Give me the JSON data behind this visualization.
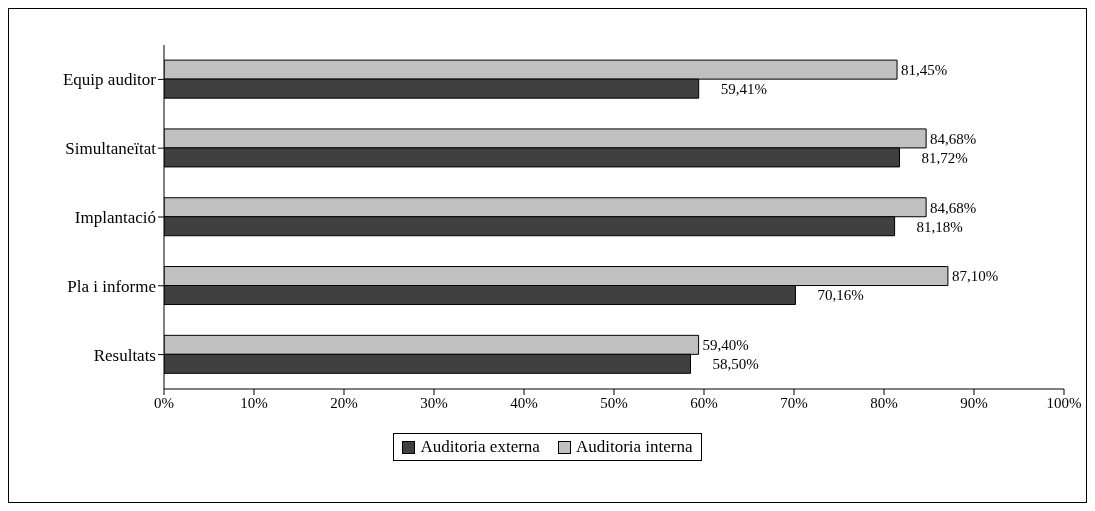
{
  "chart_data": {
    "type": "bar",
    "orientation": "horizontal",
    "categories": [
      "Equip auditor",
      "Simultaneïtat",
      "Implantació",
      "Pla i informe",
      "Resultats"
    ],
    "series": [
      {
        "name": "Auditoria externa",
        "color": "#404040",
        "values": [
          59.41,
          81.72,
          81.18,
          70.16,
          58.5
        ],
        "value_labels": [
          "59,41%",
          "81,72%",
          "81,18%",
          "70,16%",
          "58,50%"
        ]
      },
      {
        "name": "Auditoria interna",
        "color": "#c0c0c0",
        "values": [
          81.45,
          84.68,
          84.68,
          87.1,
          59.4
        ],
        "value_labels": [
          "81,45%",
          "84,68%",
          "84,68%",
          "87,10%",
          "59,40%"
        ]
      }
    ],
    "xlim": [
      0,
      100
    ],
    "xticks": [
      {
        "value": 0,
        "label": "0%"
      },
      {
        "value": 10,
        "label": "10%"
      },
      {
        "value": 20,
        "label": "20%"
      },
      {
        "value": 30,
        "label": "30%"
      },
      {
        "value": 40,
        "label": "40%"
      },
      {
        "value": 50,
        "label": "50%"
      },
      {
        "value": 60,
        "label": "60%"
      },
      {
        "value": 70,
        "label": "70%"
      },
      {
        "value": 80,
        "label": "80%"
      },
      {
        "value": 90,
        "label": "90%"
      },
      {
        "value": 100,
        "label": "100%"
      }
    ],
    "grid": false,
    "legend": "bottom"
  }
}
